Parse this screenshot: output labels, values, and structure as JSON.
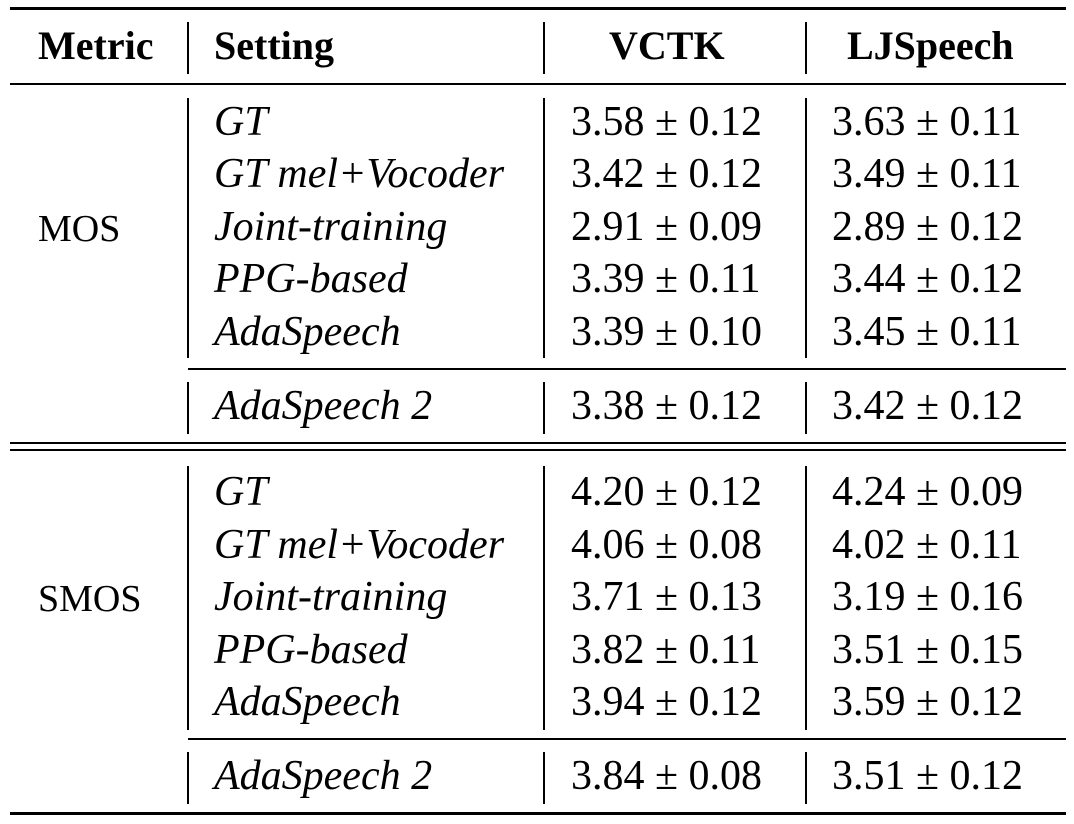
{
  "header": {
    "metric": "Metric",
    "setting": "Setting",
    "vctk": "VCTK",
    "ljspeech": "LJSpeech"
  },
  "groups": [
    {
      "metric": "MOS",
      "rows": [
        {
          "setting": "GT",
          "vctk": "3.58 ± 0.12",
          "ljspeech": "3.63 ± 0.11"
        },
        {
          "setting": "GT mel+Vocoder",
          "vctk": "3.42 ± 0.12",
          "ljspeech": "3.49 ± 0.11"
        },
        {
          "setting": "Joint-training",
          "vctk": "2.91 ± 0.09",
          "ljspeech": "2.89 ± 0.12"
        },
        {
          "setting": "PPG-based",
          "vctk": "3.39 ± 0.11",
          "ljspeech": "3.44 ± 0.12"
        },
        {
          "setting": "AdaSpeech",
          "vctk": "3.39 ± 0.10",
          "ljspeech": "3.45 ± 0.11"
        }
      ],
      "final": {
        "setting": "AdaSpeech 2",
        "vctk": "3.38 ± 0.12",
        "ljspeech": "3.42 ± 0.12"
      }
    },
    {
      "metric": "SMOS",
      "rows": [
        {
          "setting": "GT",
          "vctk": "4.20 ± 0.12",
          "ljspeech": "4.24 ± 0.09"
        },
        {
          "setting": "GT mel+Vocoder",
          "vctk": "4.06 ± 0.08",
          "ljspeech": "4.02 ± 0.11"
        },
        {
          "setting": "Joint-training",
          "vctk": "3.71 ± 0.13",
          "ljspeech": "3.19 ± 0.16"
        },
        {
          "setting": "PPG-based",
          "vctk": "3.82 ± 0.11",
          "ljspeech": "3.51 ± 0.15"
        },
        {
          "setting": "AdaSpeech",
          "vctk": "3.94 ± 0.12",
          "ljspeech": "3.59 ± 0.12"
        }
      ],
      "final": {
        "setting": "AdaSpeech 2",
        "vctk": "3.84 ± 0.08",
        "ljspeech": "3.51 ± 0.12"
      }
    }
  ]
}
